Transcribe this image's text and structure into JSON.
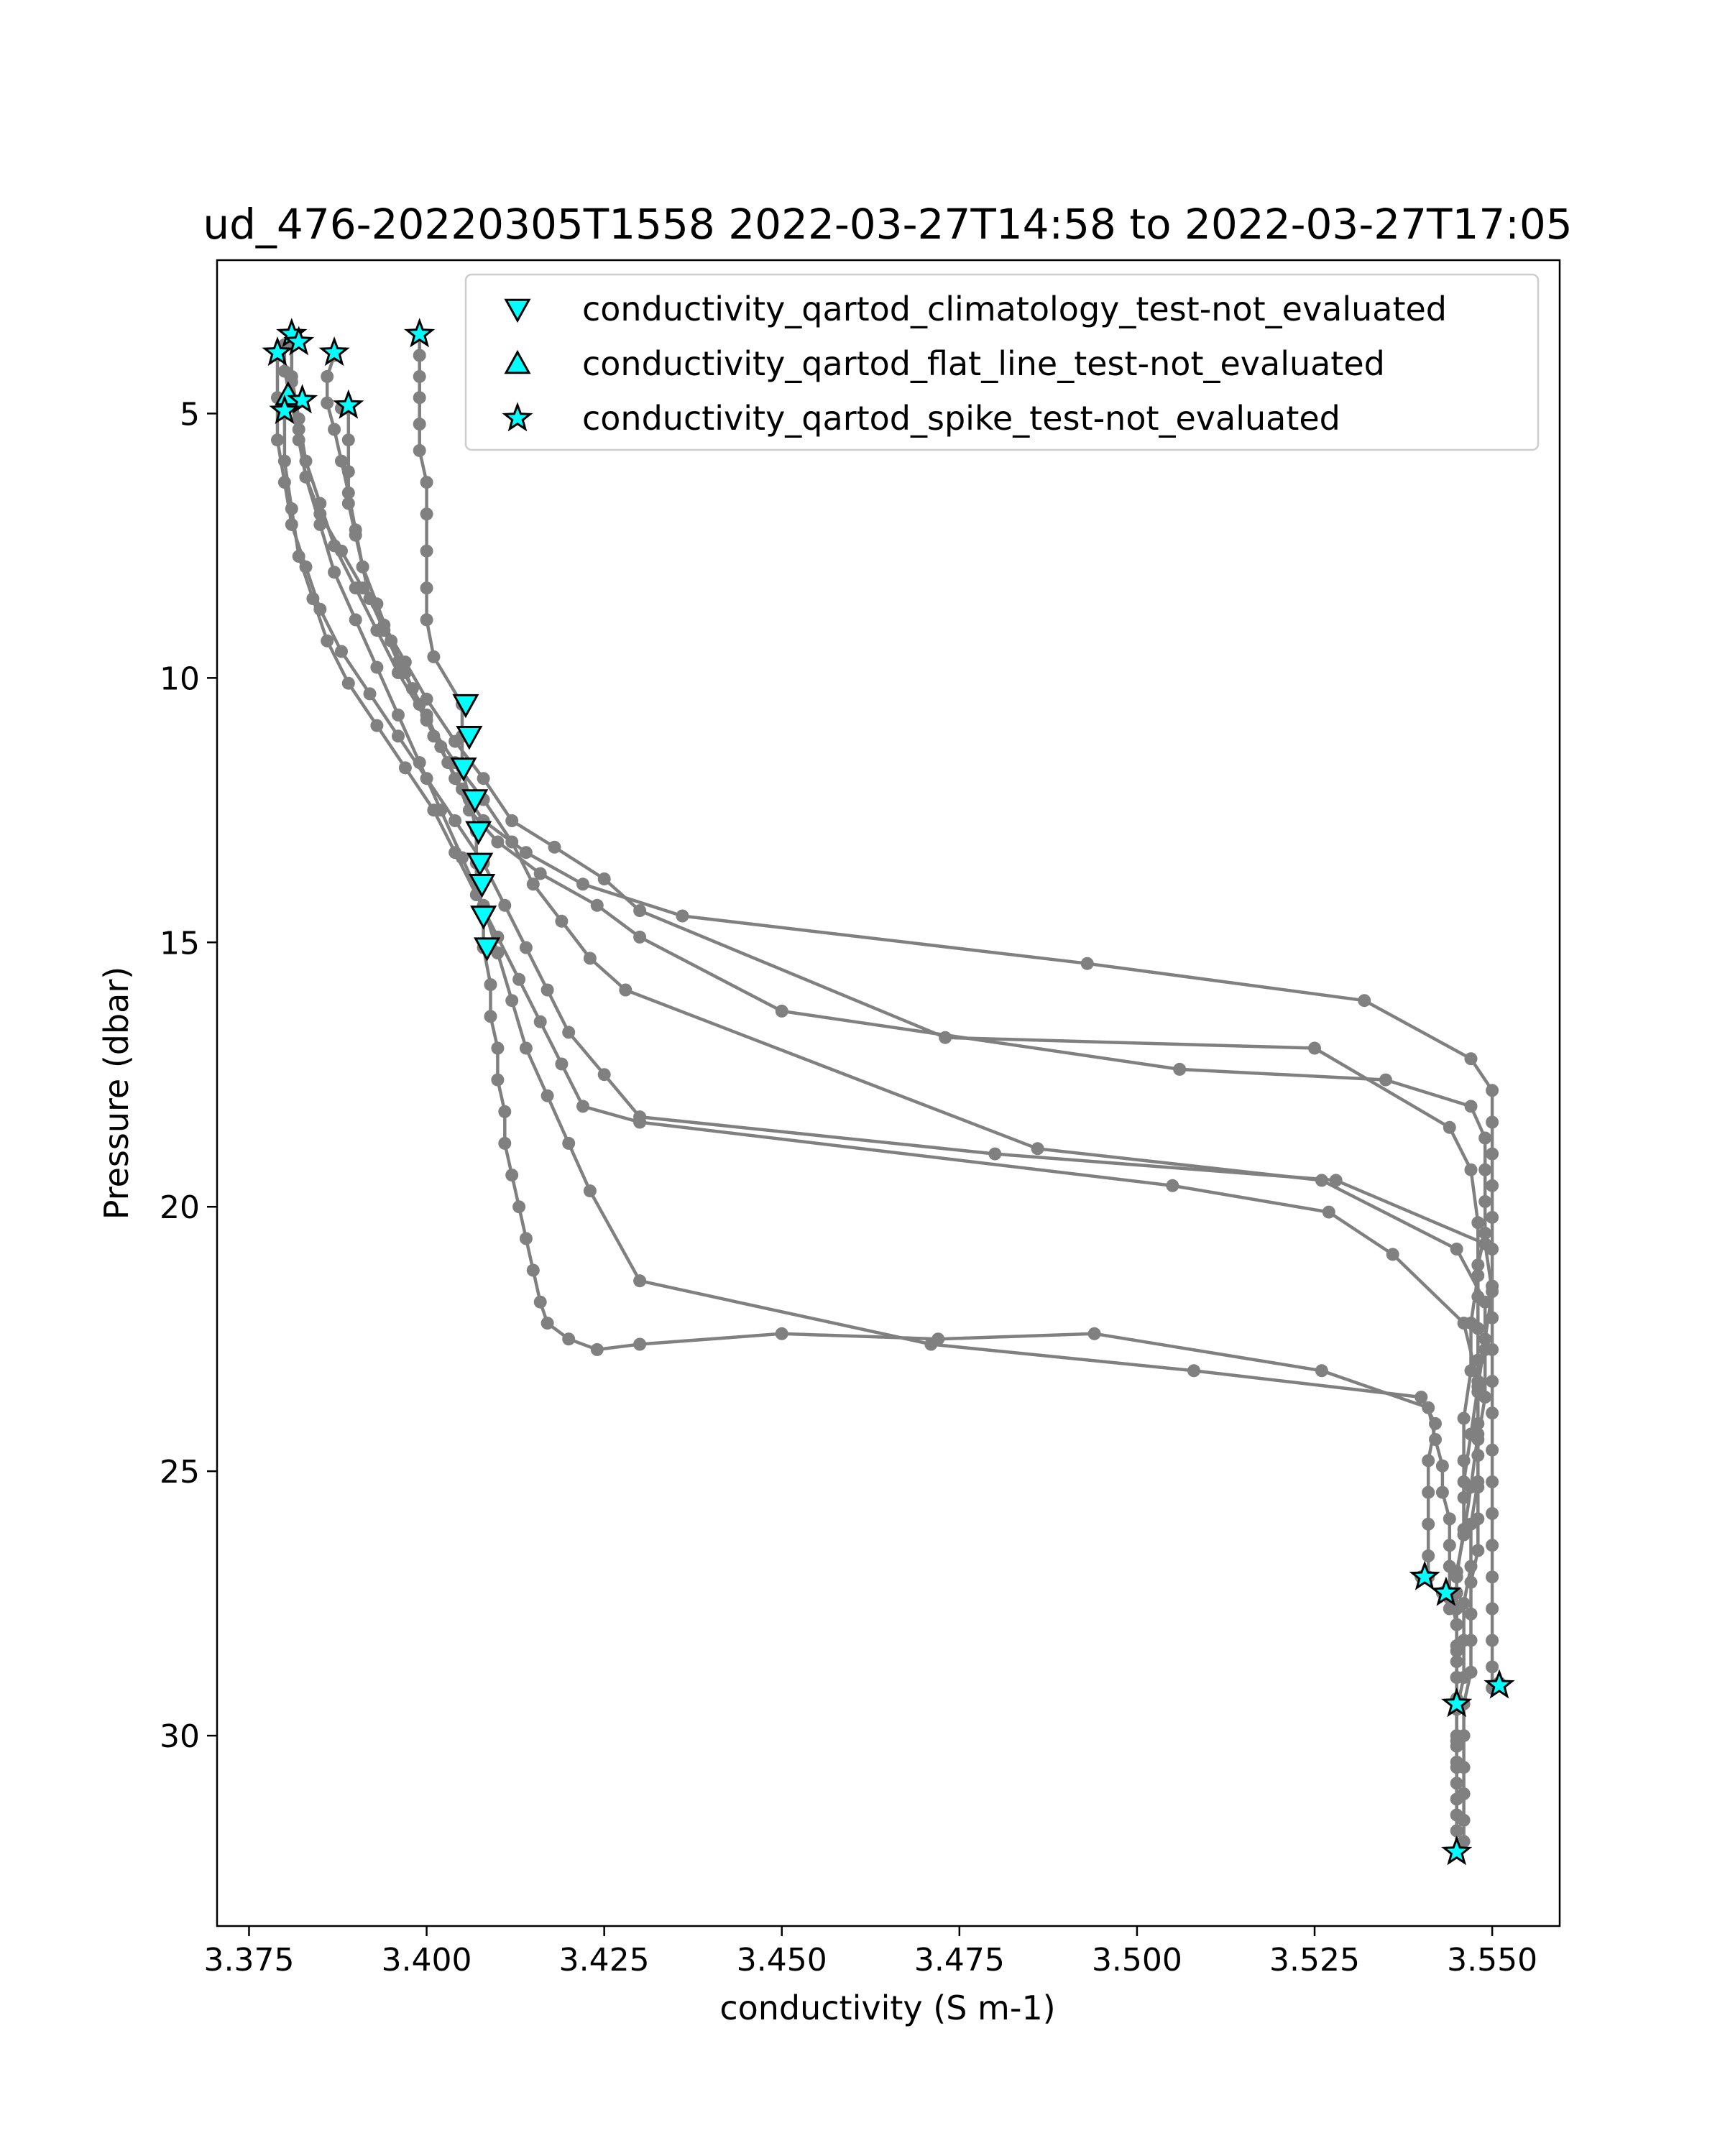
{
  "chart_data": {
    "type": "scatter",
    "title": "ud_476-20220305T1558 2022-03-27T14:58 to 2022-03-27T17:05",
    "xlabel": "conductivity (S m-1)",
    "ylabel": "Pressure (dbar)",
    "xlim": [
      3.3705,
      3.5595
    ],
    "ylim": [
      33.6,
      2.1
    ],
    "y_inverted": true,
    "x_ticks": [
      3.375,
      3.4,
      3.425,
      3.45,
      3.475,
      3.5,
      3.525,
      3.55
    ],
    "x_tick_labels": [
      "3.375",
      "3.400",
      "3.425",
      "3.450",
      "3.475",
      "3.500",
      "3.525",
      "3.550"
    ],
    "y_ticks": [
      5,
      10,
      15,
      20,
      25,
      30
    ],
    "y_tick_labels": [
      "5",
      "10",
      "15",
      "20",
      "25",
      "30"
    ],
    "grid": false,
    "legend_placement": "top-right",
    "profile_color": "#808080",
    "flag_fill_color": "#00FFFF",
    "flag_edge_color": "#000000",
    "profiles": [
      {
        "x": [
          3.399,
          3.399,
          3.399,
          3.399,
          3.399,
          3.399,
          3.4,
          3.4,
          3.4,
          3.4,
          3.4,
          3.401,
          3.405,
          3.405,
          3.405,
          3.406,
          3.407,
          3.407,
          3.407,
          3.408,
          3.408,
          3.409,
          3.409,
          3.41,
          3.41,
          3.411,
          3.411,
          3.412,
          3.413,
          3.414,
          3.415,
          3.416,
          3.417,
          3.42,
          3.424,
          3.43,
          3.45,
          3.472,
          3.494,
          3.526,
          3.541,
          3.542,
          3.543,
          3.543,
          3.544,
          3.544,
          3.544,
          3.544,
          3.545,
          3.545,
          3.545,
          3.545,
          3.545,
          3.545,
          3.545
        ],
        "y": [
          3.5,
          3.9,
          4.3,
          4.7,
          5.2,
          5.7,
          6.3,
          6.9,
          7.6,
          8.3,
          8.9,
          9.6,
          10.5,
          11.1,
          11.7,
          12.3,
          12.9,
          13.5,
          13.9,
          14.5,
          15.1,
          15.8,
          16.4,
          17,
          17.6,
          18.2,
          18.8,
          19.4,
          20,
          20.6,
          21.2,
          21.8,
          22.2,
          22.5,
          22.7,
          22.6,
          22.4,
          22.5,
          22.4,
          23.1,
          23.8,
          24.4,
          24.9,
          25.4,
          25.9,
          26.4,
          26.8,
          27.3,
          27.9,
          28.4,
          28.9,
          29.5,
          30.2,
          30.9,
          31.5
        ]
      },
      {
        "x": [
          3.387,
          3.386,
          3.386,
          3.387,
          3.388,
          3.389,
          3.39,
          3.391,
          3.393,
          3.395,
          3.397,
          3.399,
          3.401,
          3.403,
          3.405,
          3.408,
          3.414,
          3.422,
          3.436,
          3.493,
          3.532,
          3.547,
          3.55,
          3.55,
          3.55,
          3.55,
          3.55,
          3.55,
          3.55,
          3.55,
          3.55,
          3.55,
          3.55,
          3.55,
          3.55,
          3.55,
          3.55,
          3.55,
          3.55,
          3.55,
          3.55,
          3.55,
          3.551
        ],
        "y": [
          3.9,
          4.3,
          4.8,
          5.3,
          5.9,
          6.5,
          7.2,
          7.9,
          8.6,
          9.3,
          9.9,
          10.5,
          11.1,
          11.6,
          12.1,
          12.7,
          13.3,
          13.9,
          14.5,
          15.4,
          16.1,
          17.2,
          17.8,
          18.4,
          19.0,
          19.6,
          20.2,
          20.8,
          21.5,
          22.1,
          22.7,
          23.3,
          23.9,
          24.6,
          25.2,
          25.8,
          26.4,
          27.0,
          27.6,
          28.2,
          28.7,
          29.1,
          29.0
        ]
      },
      {
        "x": [
          3.389,
          3.389,
          3.389,
          3.389,
          3.39,
          3.391,
          3.392,
          3.394,
          3.396,
          3.398,
          3.4,
          3.402,
          3.404,
          3.406,
          3.41,
          3.416,
          3.424,
          3.43,
          3.45,
          3.506,
          3.535,
          3.547,
          3.549,
          3.549,
          3.549,
          3.549,
          3.548,
          3.548,
          3.548,
          3.548,
          3.548,
          3.548,
          3.548,
          3.548,
          3.548,
          3.548,
          3.547,
          3.547,
          3.547,
          3.547,
          3.546,
          3.546,
          3.546,
          3.546,
          3.546,
          3.546,
          3.545,
          3.545
        ],
        "y": [
          4.9,
          5.5,
          6.1,
          6.7,
          7.3,
          7.9,
          8.5,
          9.1,
          9.7,
          10.2,
          10.7,
          11.3,
          11.9,
          12.5,
          13.1,
          13.7,
          14.3,
          14.9,
          16.3,
          17.4,
          17.6,
          18.1,
          18.7,
          19.3,
          19.9,
          20.5,
          21.1,
          21.7,
          22.3,
          22.9,
          23.5,
          24.1,
          24.7,
          25.3,
          25.9,
          26.5,
          27.1,
          27.7,
          28.2,
          28.8,
          29.4,
          30.0,
          30.6,
          31.1,
          31.6,
          32.0,
          32.2,
          32.2
        ]
      },
      {
        "x": [
          3.388,
          3.389
        ],
        "y": [
          4.9,
          4.9
        ]
      },
      {
        "x": [
          3.38,
          3.38,
          3.381,
          3.382,
          3.383,
          3.385,
          3.388,
          3.391,
          3.394,
          3.397,
          3.4,
          3.404,
          3.408,
          3.412,
          3.418,
          3.425,
          3.43,
          3.473,
          3.525,
          3.544,
          3.547,
          3.548,
          3.548,
          3.547,
          3.547,
          3.546,
          3.546,
          3.546,
          3.546,
          3.545,
          3.545,
          3.545,
          3.545,
          3.545,
          3.545,
          3.545,
          3.545,
          3.545,
          3.545
        ],
        "y": [
          3.7,
          4.2,
          4.8,
          5.5,
          6.2,
          6.9,
          7.6,
          8.3,
          9.0,
          9.7,
          10.4,
          11.2,
          11.9,
          12.7,
          13.2,
          13.8,
          14.4,
          16.8,
          17.0,
          18.5,
          19.3,
          20.3,
          21.3,
          22.2,
          23.1,
          24.0,
          24.8,
          25.5,
          26.2,
          26.9,
          27.6,
          28.3,
          28.9,
          29.5,
          30.0,
          30.6,
          31.2,
          31.8,
          32.2
        ]
      },
      {
        "x": [
          3.381,
          3.381,
          3.382,
          3.383,
          3.385,
          3.387,
          3.39,
          3.393,
          3.396,
          3.4,
          3.404,
          3.408,
          3.412,
          3.415,
          3.419,
          3.423,
          3.428,
          3.486,
          3.526,
          3.545,
          3.549,
          3.549,
          3.549,
          3.548,
          3.548,
          3.547,
          3.547,
          3.546,
          3.546,
          3.546,
          3.545,
          3.545,
          3.545
        ],
        "y": [
          3.6,
          4.3,
          5.1,
          5.9,
          6.7,
          7.5,
          8.3,
          9.1,
          9.9,
          10.8,
          11.6,
          12.3,
          13.1,
          13.9,
          14.6,
          15.3,
          15.9,
          18.9,
          19.5,
          20.8,
          21.8,
          22.7,
          23.6,
          24.4,
          25.2,
          26.0,
          26.8,
          27.5,
          28.2,
          28.9,
          29.5,
          30.1,
          30.5
        ]
      },
      {
        "x": [
          3.379,
          3.379,
          3.379,
          3.38,
          3.381,
          3.383,
          3.385,
          3.388,
          3.392,
          3.396,
          3.4,
          3.404,
          3.408,
          3.411,
          3.414,
          3.417,
          3.42,
          3.425,
          3.43,
          3.48,
          3.528,
          3.549,
          3.55,
          3.549,
          3.548,
          3.547,
          3.546,
          3.546,
          3.545,
          3.545,
          3.545,
          3.545
        ],
        "y": [
          3.9,
          4.7,
          5.5,
          6.3,
          7.1,
          7.9,
          8.7,
          9.5,
          10.3,
          11.1,
          11.9,
          12.7,
          13.5,
          14.3,
          15.1,
          15.9,
          16.7,
          17.5,
          18.3,
          19.0,
          19.5,
          20.7,
          21.6,
          22.5,
          23.4,
          24.3,
          25.2,
          26.1,
          27.0,
          27.9,
          28.6,
          29.3
        ]
      },
      {
        "x": [
          3.38,
          3.38,
          3.381,
          3.382,
          3.384,
          3.386,
          3.389,
          3.393,
          3.397,
          3.401,
          3.404,
          3.407,
          3.41,
          3.413,
          3.416,
          3.419,
          3.422,
          3.43,
          3.505,
          3.527,
          3.536,
          3.546,
          3.548,
          3.548,
          3.547,
          3.546,
          3.545,
          3.545,
          3.544,
          3.544,
          3.544,
          3.543
        ],
        "y": [
          5.0,
          5.9,
          6.8,
          7.7,
          8.5,
          9.3,
          10.1,
          10.9,
          11.7,
          12.5,
          13.3,
          14.1,
          14.9,
          15.7,
          16.5,
          17.3,
          18.1,
          18.4,
          19.6,
          20.1,
          20.9,
          22.2,
          23.3,
          24.3,
          25.3,
          26.2,
          26.9,
          27.3,
          27.6,
          27.4,
          27.3,
          27.3
        ]
      },
      {
        "x": [
          3.381,
          3.381,
          3.382,
          3.383,
          3.385,
          3.387,
          3.39,
          3.393,
          3.396,
          3.399,
          3.402,
          3.405,
          3.408,
          3.41,
          3.412,
          3.414,
          3.417,
          3.42,
          3.423,
          3.43,
          3.471,
          3.508,
          3.54,
          3.542,
          3.541,
          3.541,
          3.541,
          3.541,
          3.541,
          3.54
        ],
        "y": [
          3.5,
          4.4,
          5.3,
          6.2,
          7.1,
          8.0,
          8.9,
          9.8,
          10.7,
          11.6,
          12.5,
          13.4,
          14.3,
          15.2,
          16.1,
          17.0,
          17.9,
          18.8,
          19.7,
          21.4,
          22.6,
          23.1,
          23.6,
          24.1,
          24.8,
          25.4,
          26.0,
          26.6,
          27.0,
          27.0
        ]
      }
    ],
    "legend": [
      {
        "label": "conductivity_qartod_climatology_test-not_evaluated",
        "marker": "triangle-down"
      },
      {
        "label": "conductivity_qartod_flat_line_test-not_evaluated",
        "marker": "triangle-up"
      },
      {
        "label": "conductivity_qartod_spike_test-not_evaluated",
        "marker": "star"
      }
    ],
    "series": [
      {
        "name": "conductivity_qartod_climatology_test-not_evaluated",
        "marker": "triangle-down",
        "x": [
          3.4055,
          3.406,
          3.4052,
          3.4068,
          3.4073,
          3.4075,
          3.4078,
          3.408,
          3.4085
        ],
        "y": [
          10.5,
          11.1,
          11.7,
          12.3,
          12.9,
          13.5,
          13.9,
          14.5,
          15.1
        ]
      },
      {
        "name": "conductivity_qartod_flat_line_test-not_evaluated",
        "marker": "triangle-up",
        "x": [
          3.3805
        ],
        "y": [
          4.65
        ]
      },
      {
        "name": "conductivity_qartod_spike_test-not_evaluated",
        "marker": "star",
        "x": [
          3.399,
          3.381,
          3.382,
          3.379,
          3.387,
          3.3825,
          3.389,
          3.38,
          3.5405,
          3.5435,
          3.551,
          3.545,
          3.545
        ],
        "y": [
          3.5,
          3.5,
          3.65,
          3.85,
          3.85,
          4.75,
          4.85,
          4.95,
          27.0,
          27.3,
          29.05,
          29.4,
          32.2
        ]
      }
    ]
  }
}
